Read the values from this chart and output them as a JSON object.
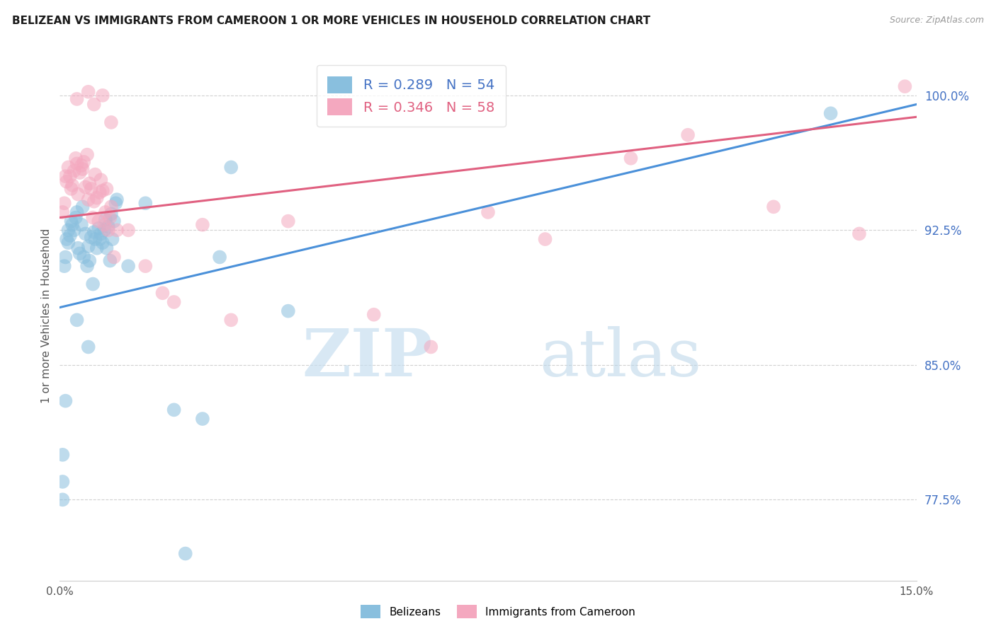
{
  "title": "BELIZEAN VS IMMIGRANTS FROM CAMEROON 1 OR MORE VEHICLES IN HOUSEHOLD CORRELATION CHART",
  "source": "Source: ZipAtlas.com",
  "ylabel": "1 or more Vehicles in Household",
  "yticks": [
    77.5,
    85.0,
    92.5,
    100.0
  ],
  "ytick_labels": [
    "77.5%",
    "85.0%",
    "92.5%",
    "100.0%"
  ],
  "xmin": 0.0,
  "xmax": 15.0,
  "ymin": 73.0,
  "ymax": 102.5,
  "belizean_color": "#89bfde",
  "cameroon_color": "#f4a8bf",
  "belizean_R": "0.289",
  "belizean_N": "54",
  "cameroon_R": "0.346",
  "cameroon_N": "58",
  "watermark_zip": "ZIP",
  "watermark_atlas": "atlas",
  "legend_label_belizean": "Belizeans",
  "legend_label_cameroon": "Immigrants from Cameroon",
  "belizean_line_x": [
    0.0,
    15.0
  ],
  "belizean_line_y": [
    88.2,
    99.5
  ],
  "cameroon_line_x": [
    0.0,
    15.0
  ],
  "cameroon_line_y": [
    93.2,
    98.8
  ],
  "belizean_scatter_x": [
    0.05,
    0.05,
    0.08,
    0.1,
    0.12,
    0.15,
    0.15,
    0.18,
    0.2,
    0.22,
    0.25,
    0.28,
    0.3,
    0.32,
    0.35,
    0.38,
    0.4,
    0.42,
    0.45,
    0.48,
    0.5,
    0.52,
    0.55,
    0.58,
    0.6,
    0.62,
    0.65,
    0.68,
    0.7,
    0.72,
    0.75,
    0.78,
    0.8,
    0.82,
    0.85,
    0.88,
    0.9,
    0.92,
    0.95,
    0.98,
    1.0,
    1.2,
    1.5,
    2.0,
    2.2,
    2.5,
    3.0,
    4.0,
    0.05,
    0.1,
    0.3,
    0.5,
    2.8,
    13.5
  ],
  "belizean_scatter_y": [
    77.5,
    78.5,
    90.5,
    91.0,
    92.0,
    91.8,
    92.5,
    92.2,
    93.0,
    92.8,
    92.5,
    93.2,
    93.5,
    91.5,
    91.2,
    92.8,
    93.8,
    91.0,
    92.3,
    90.5,
    91.6,
    90.8,
    92.1,
    89.5,
    92.4,
    92.0,
    91.5,
    92.6,
    92.0,
    92.3,
    91.8,
    92.5,
    93.1,
    91.5,
    92.7,
    90.8,
    93.4,
    92.0,
    93.0,
    94.0,
    94.2,
    90.5,
    94.0,
    82.5,
    74.5,
    82.0,
    96.0,
    88.0,
    80.0,
    83.0,
    87.5,
    86.0,
    91.0,
    99.0
  ],
  "cameroon_scatter_x": [
    0.05,
    0.08,
    0.1,
    0.12,
    0.15,
    0.18,
    0.2,
    0.22,
    0.25,
    0.28,
    0.3,
    0.32,
    0.35,
    0.38,
    0.4,
    0.42,
    0.45,
    0.48,
    0.5,
    0.52,
    0.55,
    0.58,
    0.6,
    0.62,
    0.65,
    0.68,
    0.7,
    0.72,
    0.75,
    0.78,
    0.8,
    0.82,
    0.85,
    0.88,
    0.9,
    0.95,
    1.0,
    1.2,
    1.5,
    1.8,
    2.0,
    2.5,
    3.0,
    4.0,
    5.5,
    6.5,
    7.5,
    8.5,
    10.0,
    11.0,
    12.5,
    14.0,
    14.8,
    0.3,
    0.5,
    0.6,
    0.75,
    0.9
  ],
  "cameroon_scatter_y": [
    93.5,
    94.0,
    95.5,
    95.2,
    96.0,
    95.5,
    94.8,
    95.0,
    95.8,
    96.5,
    96.2,
    94.5,
    95.7,
    96.1,
    95.9,
    96.3,
    94.9,
    96.7,
    94.2,
    95.1,
    94.8,
    93.2,
    94.1,
    95.6,
    94.3,
    93.0,
    94.6,
    95.3,
    94.7,
    92.8,
    93.5,
    94.8,
    92.5,
    93.2,
    93.8,
    91.0,
    92.5,
    92.5,
    90.5,
    89.0,
    88.5,
    92.8,
    87.5,
    93.0,
    87.8,
    86.0,
    93.5,
    92.0,
    96.5,
    97.8,
    93.8,
    92.3,
    100.5,
    99.8,
    100.2,
    99.5,
    100.0,
    98.5
  ]
}
